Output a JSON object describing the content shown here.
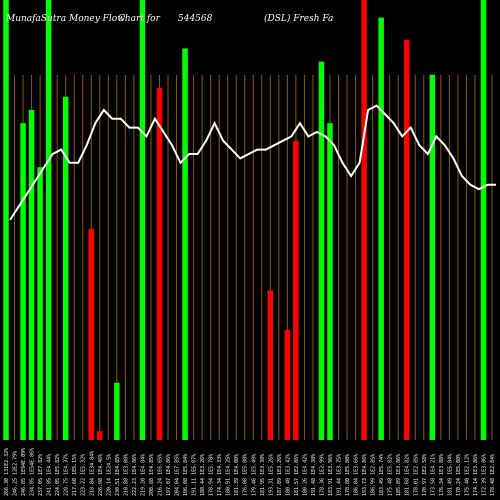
{
  "chart_data": {
    "type": "bar",
    "title": "MunafaSutra Money Flow Chart for 544568 (DSL) Fresh Fa",
    "title_parts": [
      "MunafaSutra Money Flow",
      "Chart for",
      "544568",
      "(DSL) Fresh Fa"
    ],
    "xlabel": "",
    "ylabel": "",
    "ylim": [
      0,
      100
    ],
    "grid": true,
    "legend": "none",
    "colors": {
      "up": "#00ff00",
      "down": "#ff0000",
      "line": "#ffffff",
      "grid": "#8b5a00",
      "background": "#000000"
    },
    "categories": [
      "266.30 131E2.32%",
      "246.25 12E2.79%",
      "246.85 1E94E.09%",
      "234.85 1E54E.86%",
      "237.05 1E7.82%",
      "241.85 1E4.44%",
      "224.05 1E5.82%",
      "228.75 1E4.37%",
      "217.60 1E5.15%",
      "223.22 1E5.32%",
      "218.84 1E34.84%",
      "226.98 1E4.46%",
      "220.14 1E24.5%",
      "230.51 1E4.85%",
      "210.88 1E3.08%",
      "222.23 1E4.86%",
      "219.20 1E4.84%",
      "208.88 1E4.85%",
      "216.24 1E6.65%",
      "197.07 1E4.86%",
      "204.04 1E7.85%",
      "196.08 1E5.84%",
      "191.11 1E5.87%",
      "188.44 1E3.26%",
      "178.94 1E5.78%",
      "174.34 1E4.33%",
      "180.91 1E4.25%",
      "181.39 1E4.08%",
      "176.08 1E5.88%",
      "179.46 1E5.49%",
      "181.95 1E3.38%",
      "193.31 1E5.26%",
      "187.89 1E3.26%",
      "180.40 1E3.42%",
      "181.57 1E2.86%",
      "180.26 1E4.42%",
      "191.48 1E4.38%",
      "178.36 1E2.99%",
      "183.91 1E3.96%",
      "191.44 1E3.75%",
      "178.80 1E5.80%",
      "186.04 1E3.66%",
      "193.73 1E4.86%",
      "186.99 1E2.85%",
      "183.49 1E5.74%",
      "175.48 1E5.82%",
      "185.89 1E3.86%",
      "181.68 1E4.82%",
      "178.01 1E2.85%",
      "170.97 1E2.58%",
      "173.58 1E4.21%",
      "176.34 1E3.88%",
      "181.49 1E5.84%",
      "170.24 1E5.08%",
      "175.40 1E2.12%",
      "174.14 1E3.86%",
      "172.39 1E3.86%",
      "178.48 1E2.84%"
    ],
    "series": [
      {
        "kind": "bar",
        "values": [
          100,
          0,
          72,
          75,
          62,
          100,
          0,
          78,
          0,
          0,
          48,
          2,
          0,
          13,
          0,
          0,
          100,
          0,
          80,
          0,
          0,
          89,
          0,
          0,
          0,
          0,
          0,
          0,
          0,
          0,
          0,
          34,
          0,
          25,
          68,
          0,
          0,
          86,
          72,
          0,
          0,
          0,
          100,
          0,
          96,
          0,
          0,
          91,
          0,
          0,
          83,
          0,
          0,
          0,
          0,
          0,
          100,
          0
        ],
        "directions": [
          "up",
          "up",
          "up",
          "up",
          "up",
          "up",
          "up",
          "up",
          "up",
          "down",
          "down",
          "down",
          "up",
          "up",
          "up",
          "up",
          "up",
          "up",
          "down",
          "up",
          "up",
          "up",
          "down",
          "down",
          "down",
          "down",
          "down",
          "down",
          "down",
          "down",
          "down",
          "down",
          "up",
          "down",
          "down",
          "down",
          "down",
          "up",
          "up",
          "up",
          "down",
          "down",
          "down",
          "up",
          "up",
          "up",
          "down",
          "down",
          "down",
          "up",
          "up",
          "up",
          "down",
          "down",
          "down",
          "down",
          "up",
          "up"
        ]
      },
      {
        "kind": "line",
        "values": [
          50,
          53,
          56,
          59,
          62,
          65,
          66,
          63,
          63,
          67,
          72,
          75,
          73,
          73,
          71,
          71,
          69,
          73,
          70,
          67,
          63,
          65,
          65,
          68,
          72,
          68,
          66,
          64,
          65,
          66,
          66,
          67,
          68,
          69,
          72,
          69,
          70,
          69,
          67,
          63,
          60,
          63,
          75,
          76,
          74,
          72,
          69,
          71,
          67,
          65,
          69,
          67,
          64,
          60,
          58,
          57,
          58,
          58
        ]
      }
    ]
  }
}
